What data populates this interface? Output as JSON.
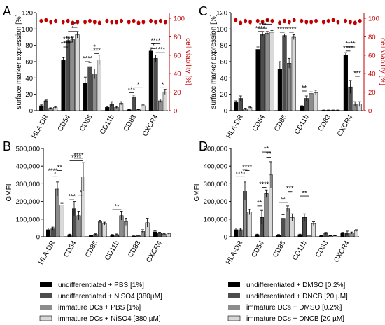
{
  "colors": {
    "series": [
      "#000000",
      "#4d4d4d",
      "#8c8c8c",
      "#d9d9d9"
    ],
    "viability": "#c00000"
  },
  "legends": [
    {
      "entries": [
        "undifferentiated + PBS [1%]",
        "undifferentiated + NiSO4 [380µM]",
        "immature DCs + PBS [1%]",
        "immature DCs + NiSO4 [380 µM]"
      ]
    },
    {
      "entries": [
        "undifferentiated + DMSO [0.2%]",
        "undifferentiated + DNCB [20 µM]",
        "immature DCs + DMSO [0.2%]",
        "immature DCs + DNCB [20 µM]"
      ]
    }
  ],
  "chart_data": [
    {
      "panel": "A",
      "type": "bar",
      "categories": [
        "HLA-DR",
        "CD54",
        "CD86",
        "CD11b",
        "CD83",
        "CXCR4"
      ],
      "ylabel": "surface marker expression [%]",
      "ylim": [
        0,
        120
      ],
      "yticks": [
        "0",
        "20",
        "40",
        "60",
        "80",
        "100",
        "120"
      ],
      "ylabel2": "cell viability [%]",
      "ylim2": [
        0,
        100
      ],
      "yticks2": [
        "0",
        "20",
        "40",
        "60",
        "80",
        "100"
      ],
      "grid": false,
      "series": [
        {
          "values": [
            6,
            62,
            34,
            4,
            1,
            73
          ],
          "err": [
            1,
            3,
            7,
            1,
            0.5,
            4
          ]
        },
        {
          "values": [
            12,
            86,
            54,
            8,
            17,
            64
          ],
          "err": [
            1,
            4,
            5,
            3,
            2,
            4
          ]
        },
        {
          "values": [
            3,
            87,
            45,
            4,
            1,
            12
          ],
          "err": [
            0.5,
            3,
            6,
            1,
            0.5,
            2
          ]
        },
        {
          "values": [
            4,
            93,
            62,
            9,
            6,
            23
          ],
          "err": [
            1,
            4,
            6,
            2,
            1,
            3
          ]
        }
      ],
      "viability": [
        [
          97,
          98,
          96,
          97
        ],
        [
          96,
          97,
          95,
          96
        ],
        [
          96,
          97,
          96,
          95
        ],
        [
          97,
          96,
          96,
          97
        ],
        [
          96,
          97,
          95,
          96
        ],
        [
          97,
          96,
          97,
          96
        ]
      ],
      "significance": [
        {
          "label": "****",
          "from": [
            1,
            0
          ],
          "to": [
            1,
            1
          ],
          "value": 78
        },
        {
          "label": "****",
          "from": [
            1,
            0
          ],
          "to": [
            1,
            2
          ],
          "value": 84
        },
        {
          "label": "*",
          "from": [
            1,
            1
          ],
          "to": [
            1,
            3
          ],
          "value": 97
        },
        {
          "label": "*",
          "from": [
            1,
            2
          ],
          "to": [
            1,
            3
          ],
          "value": 102
        },
        {
          "label": "****",
          "from": [
            2,
            0
          ],
          "to": [
            2,
            1
          ],
          "value": 60
        },
        {
          "label": "*",
          "from": [
            2,
            1
          ],
          "to": [
            2,
            3
          ],
          "value": 74
        },
        {
          "label": "***",
          "from": [
            2,
            2
          ],
          "to": [
            2,
            3
          ],
          "value": 70
        },
        {
          "label": "***",
          "from": [
            4,
            0
          ],
          "to": [
            4,
            1
          ],
          "value": 22
        },
        {
          "label": "*",
          "from": [
            4,
            1
          ],
          "to": [
            4,
            3
          ],
          "value": 28
        },
        {
          "label": "****",
          "from": [
            5,
            0
          ],
          "to": [
            5,
            2
          ],
          "value": 82
        },
        {
          "label": "*",
          "from": [
            5,
            0
          ],
          "to": [
            5,
            1
          ],
          "value": 76
        },
        {
          "label": "****",
          "from": [
            5,
            1
          ],
          "to": [
            5,
            3
          ],
          "value": 71
        },
        {
          "label": "*",
          "from": [
            5,
            2
          ],
          "to": [
            5,
            3
          ],
          "value": 28
        }
      ]
    },
    {
      "panel": "C",
      "type": "bar",
      "categories": [
        "HLA-DR",
        "CD54",
        "CD86",
        "CD11b",
        "CD83",
        "CXCR4"
      ],
      "ylabel": "surface marker expression [%]",
      "ylim": [
        0,
        120
      ],
      "yticks": [
        "0",
        "20",
        "40",
        "60",
        "80",
        "100",
        "120"
      ],
      "ylabel2": "cell viability [%]",
      "ylim2": [
        0,
        100
      ],
      "yticks2": [
        "0",
        "20",
        "40",
        "60",
        "80",
        "100"
      ],
      "grid": false,
      "series": [
        {
          "values": [
            10,
            75,
            51,
            5,
            0.5,
            68
          ],
          "err": [
            2,
            3,
            9,
            1,
            0.3,
            3
          ]
        },
        {
          "values": [
            15,
            94,
            92,
            15,
            0.5,
            29
          ],
          "err": [
            3,
            3,
            2,
            3,
            0.3,
            8
          ]
        },
        {
          "values": [
            2,
            95,
            58,
            21,
            0.5,
            8
          ],
          "err": [
            1,
            2,
            6,
            2,
            0.3,
            3
          ]
        },
        {
          "values": [
            4,
            96,
            90,
            22,
            0.5,
            8
          ],
          "err": [
            1,
            2,
            3,
            3,
            0.3,
            3
          ]
        }
      ],
      "viability": [
        [
          98,
          95,
          97,
          96
        ],
        [
          97,
          96,
          98,
          97
        ],
        [
          95,
          97,
          96,
          98
        ],
        [
          97,
          96,
          96,
          97
        ],
        [
          96,
          97,
          98,
          96
        ],
        [
          97,
          96,
          95,
          97
        ]
      ],
      "significance": [
        {
          "label": "****",
          "from": [
            1,
            0
          ],
          "to": [
            1,
            1
          ],
          "value": 97
        },
        {
          "label": "***",
          "from": [
            1,
            0
          ],
          "to": [
            1,
            2
          ],
          "value": 101
        },
        {
          "label": "*",
          "from": [
            1,
            1
          ],
          "to": [
            1,
            3
          ],
          "value": 106
        },
        {
          "label": "****",
          "from": [
            2,
            0
          ],
          "to": [
            2,
            1
          ],
          "value": 96
        },
        {
          "label": "****",
          "from": [
            2,
            2
          ],
          "to": [
            2,
            3
          ],
          "value": 96
        },
        {
          "label": "**",
          "from": [
            3,
            0
          ],
          "to": [
            3,
            1
          ],
          "value": 24
        },
        {
          "label": "****",
          "from": [
            5,
            0
          ],
          "to": [
            5,
            1
          ],
          "value": 73
        },
        {
          "label": "****",
          "from": [
            5,
            0
          ],
          "to": [
            5,
            2
          ],
          "value": 78
        },
        {
          "label": "***",
          "from": [
            5,
            2
          ],
          "to": [
            5,
            3
          ],
          "value": 42
        }
      ]
    },
    {
      "panel": "B",
      "type": "bar",
      "categories": [
        "HLA-DR",
        "CD54",
        "CD86",
        "CD11b",
        "CD83",
        "CXCR4"
      ],
      "ylabel": "GMFI",
      "ylim": [
        0,
        500000
      ],
      "yticks": [
        "0",
        "100,000",
        "200,000",
        "300,000",
        "400,000",
        "500,000"
      ],
      "grid": false,
      "series": [
        {
          "values": [
            40000,
            12000,
            8000,
            10000,
            4000,
            28000
          ],
          "err": [
            10000,
            3000,
            2000,
            3000,
            1000,
            5000
          ]
        },
        {
          "values": [
            45000,
            160000,
            14000,
            12000,
            8000,
            22000
          ],
          "err": [
            10000,
            40000,
            3000,
            4000,
            2000,
            4000
          ]
        },
        {
          "values": [
            270000,
            120000,
            85000,
            120000,
            30000,
            15000
          ],
          "err": [
            40000,
            25000,
            8000,
            25000,
            10000,
            3000
          ]
        },
        {
          "values": [
            180000,
            340000,
            75000,
            85000,
            80000,
            18000
          ],
          "err": [
            10000,
            80000,
            8000,
            20000,
            25000,
            4000
          ]
        }
      ],
      "significance": [
        {
          "label": "****",
          "from": [
            0,
            0
          ],
          "to": [
            0,
            2
          ],
          "value": 355000
        },
        {
          "label": "**",
          "from": [
            0,
            2
          ],
          "to": [
            0,
            3
          ],
          "value": 375000
        },
        {
          "label": "*",
          "from": [
            0,
            1
          ],
          "to": [
            0,
            2
          ],
          "value": 340000
        },
        {
          "label": "***",
          "from": [
            1,
            0
          ],
          "to": [
            1,
            1
          ],
          "value": 210000
        },
        {
          "label": "*",
          "from": [
            1,
            2
          ],
          "to": [
            1,
            3
          ],
          "value": 235000
        },
        {
          "label": "****",
          "from": [
            1,
            0
          ],
          "to": [
            1,
            3
          ],
          "value": 430000
        },
        {
          "label": "****",
          "from": [
            1,
            1
          ],
          "to": [
            1,
            3
          ],
          "value": 445000
        },
        {
          "label": "**",
          "from": [
            3,
            0
          ],
          "to": [
            3,
            2
          ],
          "value": 155000
        }
      ]
    },
    {
      "panel": "D",
      "type": "bar",
      "categories": [
        "HLA-DR",
        "CD54",
        "CD86",
        "CD11b",
        "CD83",
        "CXCR4"
      ],
      "ylabel": "GMFI",
      "ylim": [
        0,
        500000
      ],
      "yticks": [
        "0",
        "100,000",
        "200,000",
        "300,000",
        "400,000",
        "500,000"
      ],
      "grid": false,
      "series": [
        {
          "values": [
            40000,
            12000,
            10000,
            12000,
            5000,
            20000
          ],
          "err": [
            10000,
            3000,
            3000,
            3000,
            2000,
            5000
          ]
        },
        {
          "values": [
            40000,
            110000,
            105000,
            110000,
            20000,
            22000
          ],
          "err": [
            8000,
            40000,
            20000,
            20000,
            5000,
            10000
          ]
        },
        {
          "values": [
            260000,
            245000,
            160000,
            8000,
            5000,
            22000
          ],
          "err": [
            50000,
            20000,
            15000,
            2000,
            2000,
            5000
          ]
        },
        {
          "values": [
            140000,
            350000,
            110000,
            75000,
            5000,
            35000
          ],
          "err": [
            15000,
            75000,
            20000,
            10000,
            2000,
            5000
          ]
        }
      ],
      "significance": [
        {
          "label": "****",
          "from": [
            0,
            0
          ],
          "to": [
            0,
            2
          ],
          "value": 340000
        },
        {
          "label": "**",
          "from": [
            0,
            1
          ],
          "to": [
            0,
            3
          ],
          "value": 355000
        },
        {
          "label": "****",
          "from": [
            0,
            2
          ],
          "to": [
            0,
            3
          ],
          "value": 375000
        },
        {
          "label": "**",
          "from": [
            1,
            0
          ],
          "to": [
            1,
            1
          ],
          "value": 175000
        },
        {
          "label": "****",
          "from": [
            1,
            1
          ],
          "to": [
            1,
            2
          ],
          "value": 280000
        },
        {
          "label": "**",
          "from": [
            1,
            2
          ],
          "to": [
            1,
            3
          ],
          "value": 450000
        },
        {
          "label": "**",
          "from": [
            1,
            1
          ],
          "to": [
            1,
            3
          ],
          "value": 480000
        },
        {
          "label": "**",
          "from": [
            2,
            0
          ],
          "to": [
            2,
            2
          ],
          "value": 195000
        },
        {
          "label": "***",
          "from": [
            2,
            2
          ],
          "to": [
            2,
            3
          ],
          "value": 255000
        },
        {
          "label": "**",
          "from": [
            3,
            0
          ],
          "to": [
            3,
            2
          ],
          "value": 230000
        }
      ]
    }
  ],
  "panel_labels": [
    "A",
    "C",
    "B",
    "D"
  ]
}
